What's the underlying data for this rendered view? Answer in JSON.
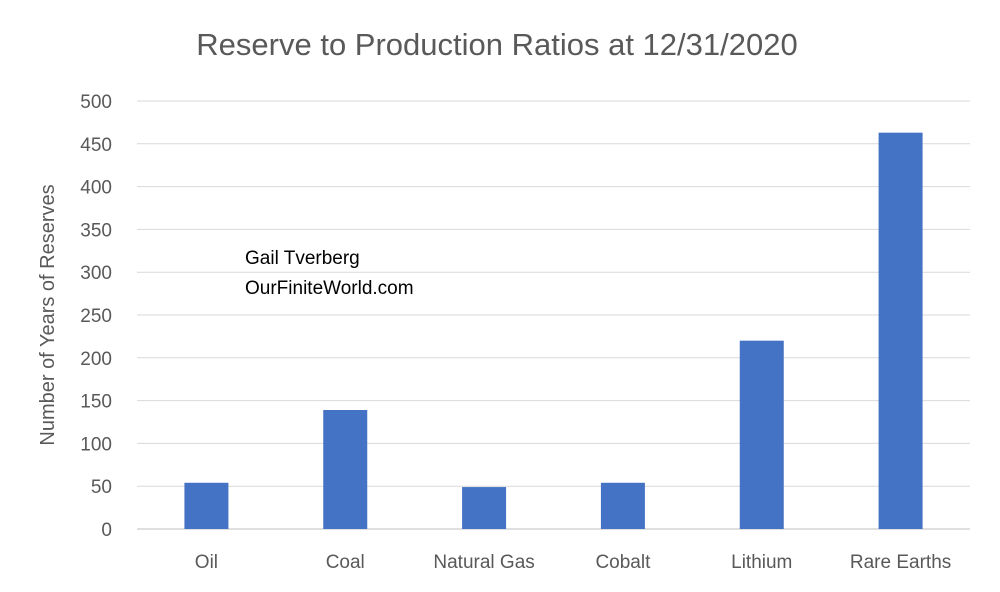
{
  "chart_data": {
    "type": "bar",
    "title": "Reserve to Production Ratios at 12/31/2020",
    "ylabel": "Number of Years of Reserves",
    "xlabel": "",
    "categories": [
      "Oil",
      "Coal",
      "Natural Gas",
      "Cobalt",
      "Lithium",
      "Rare Earths"
    ],
    "values": [
      54,
      139,
      49,
      54,
      220,
      463
    ],
    "ylim": [
      0,
      500
    ],
    "yticks": [
      0,
      50,
      100,
      150,
      200,
      250,
      300,
      350,
      400,
      450,
      500
    ],
    "grid": true,
    "legend": "none",
    "bar_color": "#4472c4",
    "annotations": [
      "Gail Tverberg",
      "OurFiniteWorld.com"
    ]
  }
}
